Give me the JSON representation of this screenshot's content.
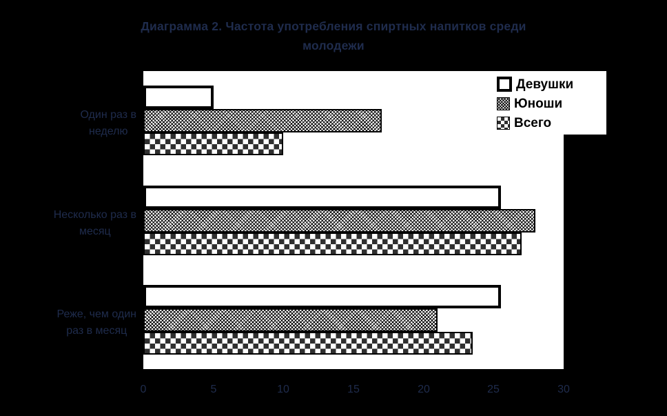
{
  "title": {
    "line1": "Диаграмма 2. Частота употребления спиртных напитков среди",
    "line2": "молодежи"
  },
  "chart_data": {
    "type": "bar",
    "orientation": "horizontal",
    "title": "Диаграмма 2. Частота употребления спиртных напитков среди молодежи",
    "categories": [
      [
        "Один раз в",
        "неделю"
      ],
      [
        "Несколько раз в",
        "месяц"
      ],
      [
        "Реже, чем один",
        "раз в месяц"
      ]
    ],
    "series": [
      {
        "name": "Девушки",
        "fill": "white-thick-border",
        "values": [
          5,
          25.5,
          25.5
        ]
      },
      {
        "name": "Юноши",
        "fill": "fine-crosshatch",
        "values": [
          17,
          28,
          21
        ]
      },
      {
        "name": "Всего",
        "fill": "checkerboard",
        "values": [
          10,
          27,
          23.5
        ]
      }
    ],
    "xlim": [
      0,
      30
    ],
    "xticks": [
      "0",
      "5",
      "10",
      "15",
      "20",
      "25",
      "30"
    ],
    "grid": "off",
    "legend_position": "top-right",
    "colors": {
      "page_background": "#000000",
      "plot_background": "#ffffff",
      "axis": "#000000",
      "label_text": "#1f2c4d",
      "legend_text": "#000000",
      "checker_dark": "#2f2f2f"
    }
  }
}
